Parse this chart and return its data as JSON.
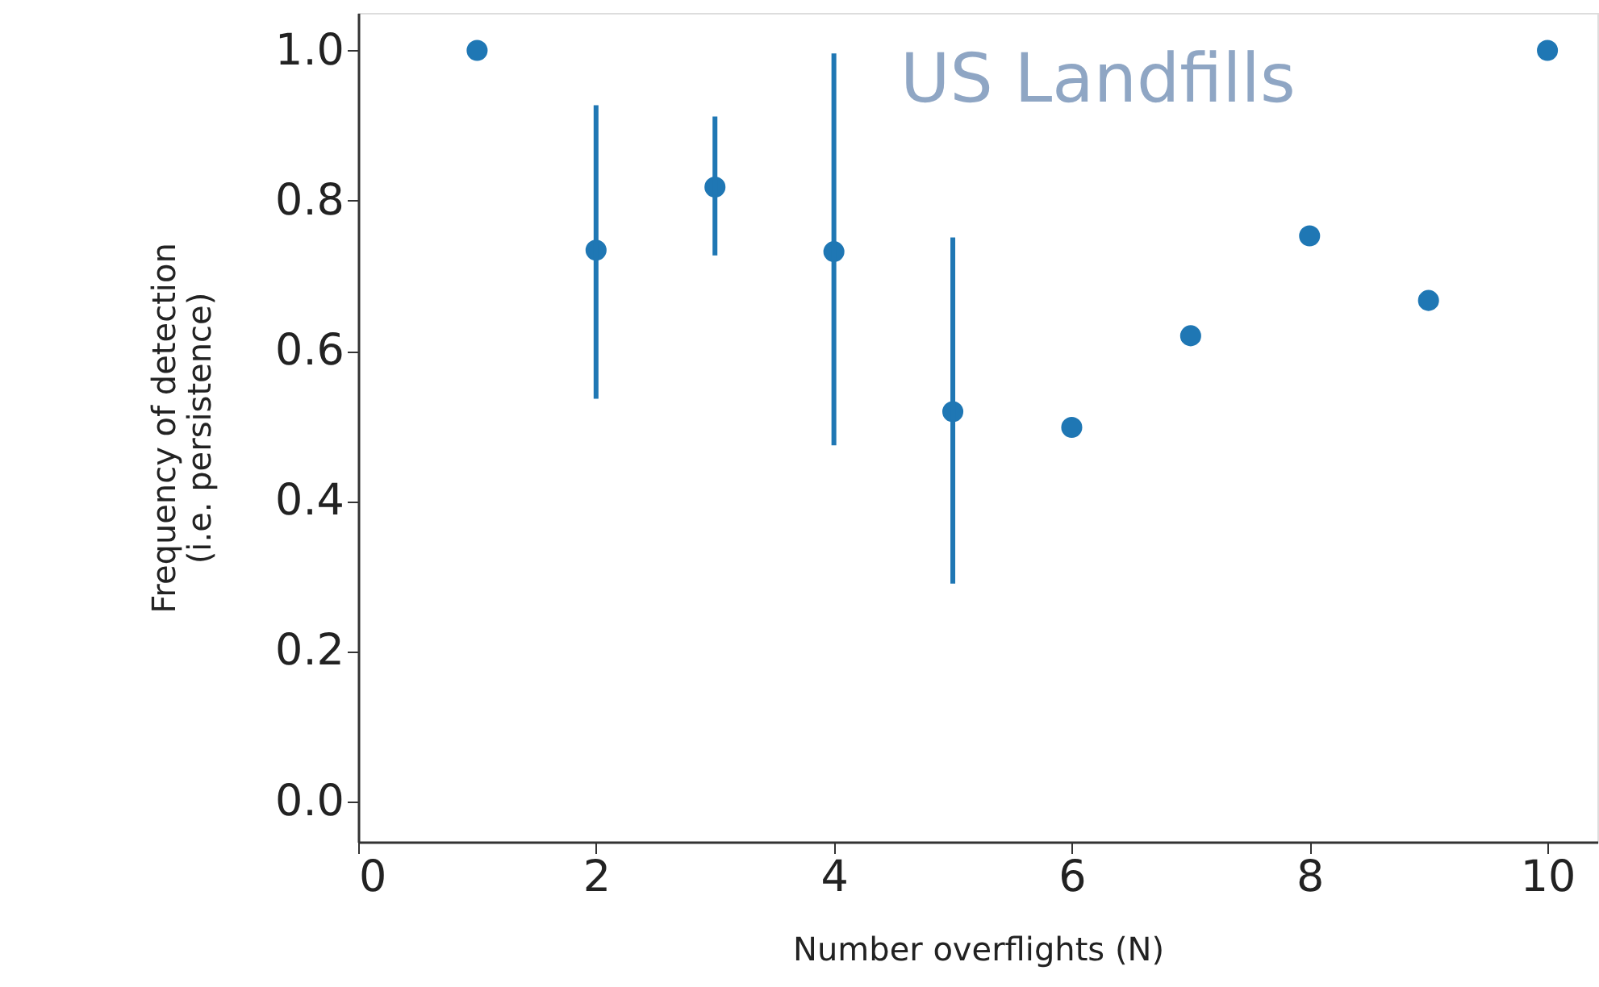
{
  "chart_data": {
    "type": "scatter",
    "xlabel": "Number overflights (N)",
    "ylabel": "Frequency of detection\n(i.e. persistence)",
    "annotations": [
      "US Landfills"
    ],
    "x": [
      1,
      2,
      3,
      4,
      5,
      6,
      7,
      8,
      9,
      10
    ],
    "series": [
      {
        "color": "#1f77b4",
        "values": [
          1.0,
          0.734,
          0.818,
          0.732,
          0.519,
          0.498,
          0.62,
          0.753,
          0.667,
          1.0
        ],
        "errors": [
          null,
          [
            0.536,
            0.927
          ],
          [
            0.727,
            0.912
          ],
          [
            0.474,
            0.996
          ],
          [
            0.29,
            0.751
          ],
          null,
          null,
          null,
          null,
          null
        ]
      }
    ],
    "xlim": [
      0,
      10.42
    ],
    "ylim": [
      -0.054,
      1.05
    ],
    "xticks": [
      0,
      2,
      4,
      6,
      8,
      10
    ],
    "yticks": [
      {
        "value": 0,
        "label": "0.0"
      },
      {
        "value": 0.2,
        "label": "0.2"
      },
      {
        "value": 0.4,
        "label": "0.4"
      },
      {
        "value": 0.6,
        "label": "0.6"
      },
      {
        "value": 0.8,
        "label": "0.8"
      },
      {
        "value": 1,
        "label": "1.0"
      }
    ],
    "marker": "circle",
    "grid": false
  }
}
